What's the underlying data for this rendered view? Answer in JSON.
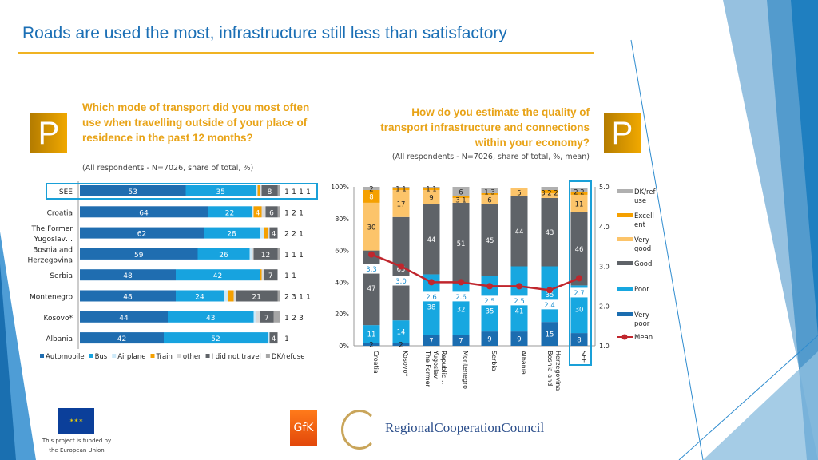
{
  "title": "Roads are used the most, infrastructure still less than satisfactory",
  "left": {
    "question": "Which mode of transport did you most often use when travelling outside of your place of residence in the past 12 months?",
    "note": "(All respondents - N=7026, share of total, %)",
    "badge": "P"
  },
  "right": {
    "question": "How do you estimate the quality of transport infrastructure and connections within your economy?",
    "note": "(All respondents - N=7026, share of total, %, mean)",
    "badge": "P"
  },
  "footer": {
    "eu_text_1": "This project is funded by",
    "eu_text_2": "the European Union",
    "gfk_logo": "GfK",
    "rcc_logo": "RegionalCooperationCouncil"
  },
  "chart_data": [
    {
      "type": "bar",
      "orientation": "horizontal",
      "stacked": true,
      "legend": "bottom",
      "xlim": [
        0,
        100
      ],
      "categories": [
        "SEE",
        "Croatia",
        "The Former Yugoslav…",
        "Bosnia and Herzegovina",
        "Serbia",
        "Montenegro",
        "Kosovo*",
        "Albania"
      ],
      "highlight": "SEE",
      "series": [
        {
          "name": "Automobile",
          "color": "#1f6db0",
          "values": [
            53,
            64,
            62,
            59,
            48,
            48,
            44,
            42
          ]
        },
        {
          "name": "Bus",
          "color": "#17a3df",
          "values": [
            35,
            22,
            28,
            26,
            42,
            24,
            43,
            52
          ]
        },
        {
          "name": "Airplane",
          "color": "#cde9f8",
          "values": [
            1,
            1,
            2,
            1,
            0,
            2,
            1,
            1
          ]
        },
        {
          "name": "Train",
          "color": "#f5a000",
          "values": [
            1,
            4,
            2,
            0,
            1,
            3,
            0,
            0
          ]
        },
        {
          "name": "other",
          "color": "#d9d9d9",
          "values": [
            1,
            2,
            1,
            1,
            1,
            1,
            2,
            0
          ]
        },
        {
          "name": "I did not travel",
          "color": "#5f6368",
          "values": [
            8,
            6,
            4,
            12,
            7,
            21,
            7,
            4
          ]
        },
        {
          "name": "DK/refuse",
          "color": "#a6a6a6",
          "values": [
            1,
            1,
            0,
            1,
            0,
            1,
            3,
            0
          ]
        }
      ]
    },
    {
      "type": "bar",
      "orientation": "vertical",
      "stacked": true,
      "legend": "right",
      "ylim": [
        0,
        100
      ],
      "y2lim": [
        1.0,
        5.0
      ],
      "yticks": [
        "0%",
        "20%",
        "40%",
        "60%",
        "80%",
        "100%"
      ],
      "y2ticks": [
        "1.0",
        "2.0",
        "3.0",
        "4.0",
        "5.0"
      ],
      "categories": [
        "Croatia",
        "Kosovo*",
        "The Former Yugoslav Republic…",
        "Montenegro",
        "Serbia",
        "Albania",
        "Bosnia and Herzegovina",
        "SEE"
      ],
      "highlight": "SEE",
      "series": [
        {
          "name": "Very poor",
          "color": "#1b6db0",
          "values": [
            2,
            2,
            7,
            7,
            9,
            9,
            15,
            8
          ]
        },
        {
          "name": "Poor",
          "color": "#17a7e0",
          "values": [
            11,
            14,
            38,
            32,
            35,
            41,
            35,
            30
          ]
        },
        {
          "name": "Good",
          "color": "#5f6368",
          "values": [
            47,
            65,
            44,
            51,
            45,
            44,
            43,
            46
          ]
        },
        {
          "name": "Very good",
          "color": "#fcc46a",
          "values": [
            30,
            17,
            9,
            3,
            6,
            5,
            3,
            11
          ]
        },
        {
          "name": "Excellent",
          "color": "#f5a000",
          "values": [
            8,
            1,
            1,
            1,
            1,
            0,
            2,
            2
          ]
        },
        {
          "name": "DK/refuse",
          "color": "#b0b0b0",
          "values": [
            2,
            1,
            1,
            6,
            3,
            0,
            2,
            2
          ]
        }
      ],
      "line": {
        "name": "Mean",
        "color": "#c0262d",
        "values": [
          3.3,
          3.0,
          2.6,
          2.6,
          2.5,
          2.5,
          2.4,
          2.7
        ]
      },
      "legend_labels": [
        "DK/ref use",
        "Excell ent",
        "Very good",
        "Good",
        "Poor",
        "Very poor",
        "Mean"
      ]
    }
  ]
}
